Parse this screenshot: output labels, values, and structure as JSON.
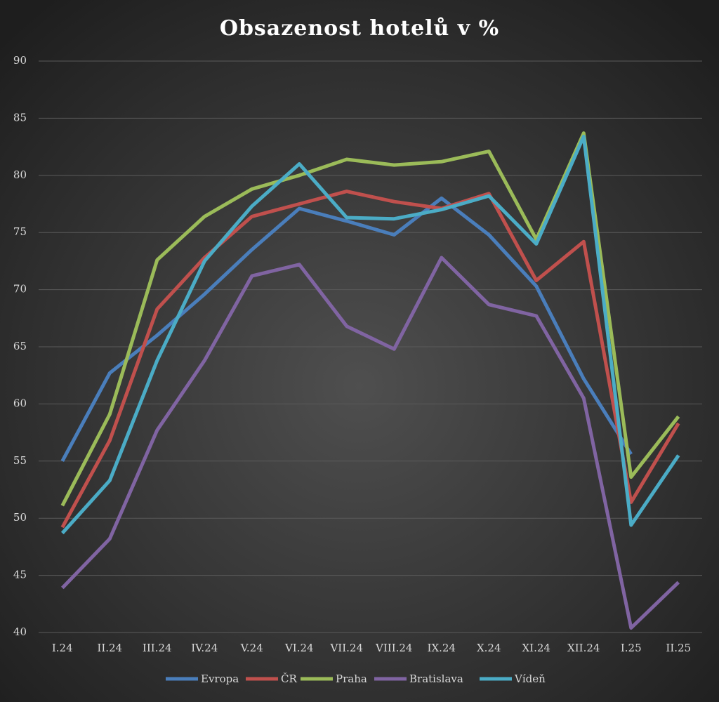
{
  "chart_data": {
    "type": "line",
    "title": "Obsazenost hotelů v %",
    "categories": [
      "I.24",
      "II.24",
      "III.24",
      "IV.24",
      "V.24",
      "VI.24",
      "VII.24",
      "VIII.24",
      "IX.24",
      "X.24",
      "XI.24",
      "XII.24",
      "I.25",
      "II.25"
    ],
    "series": [
      {
        "name": "Evropa",
        "color": "#4a7ebb",
        "values": [
          55.0,
          62.7,
          66.0,
          69.6,
          73.5,
          77.1,
          76.0,
          74.8,
          78.0,
          74.8,
          70.3,
          62.2,
          55.6,
          null
        ]
      },
      {
        "name": "ČR",
        "color": "#c0504d",
        "values": [
          49.2,
          56.8,
          68.3,
          72.8,
          76.4,
          77.5,
          78.6,
          77.7,
          77.1,
          78.4,
          70.8,
          74.2,
          51.4,
          58.3
        ]
      },
      {
        "name": "Praha",
        "color": "#9bbb59",
        "values": [
          51.1,
          59.1,
          72.6,
          76.4,
          78.8,
          80.0,
          81.4,
          80.9,
          81.2,
          82.1,
          74.4,
          83.7,
          53.6,
          58.9
        ]
      },
      {
        "name": "Bratislava",
        "color": "#8064a2",
        "values": [
          43.9,
          48.2,
          57.7,
          63.8,
          71.2,
          72.2,
          66.8,
          64.8,
          72.8,
          68.7,
          67.7,
          60.5,
          40.4,
          44.4
        ]
      },
      {
        "name": "Vídeň",
        "color": "#4bacc6",
        "values": [
          48.7,
          53.3,
          63.8,
          72.5,
          77.3,
          81.0,
          76.3,
          76.2,
          77.0,
          78.2,
          74.0,
          83.4,
          49.4,
          55.5
        ]
      }
    ],
    "ylim": [
      40,
      90
    ],
    "yticks": [
      40,
      45,
      50,
      55,
      60,
      65,
      70,
      75,
      80,
      85,
      90
    ],
    "grid": true,
    "legend": "bottom"
  }
}
